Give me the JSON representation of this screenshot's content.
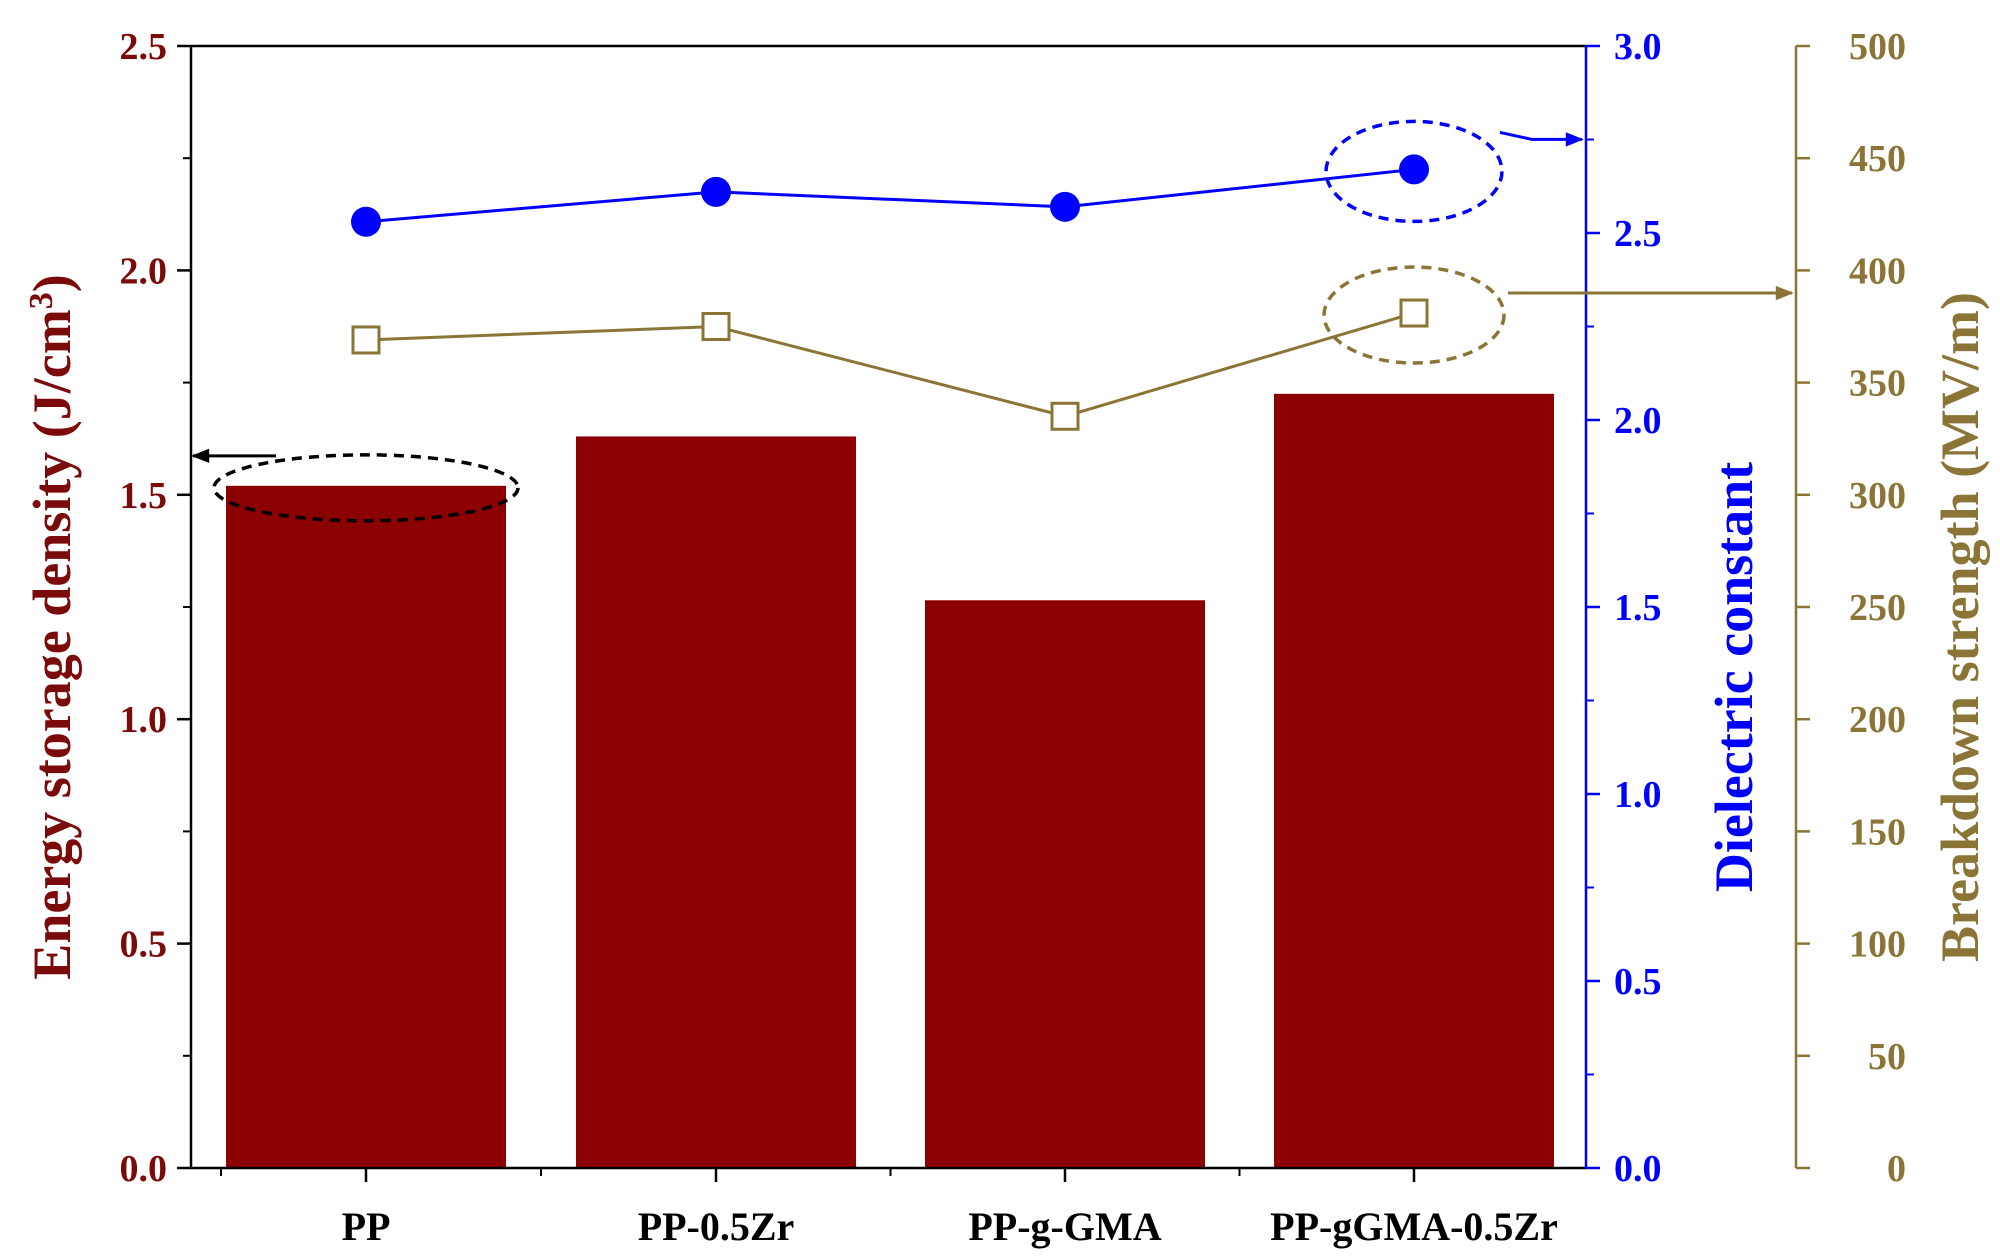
{
  "chart_data": {
    "type": "bar",
    "categories": [
      "PP",
      "PP-0.5Zr",
      "PP-g-GMA",
      "PP-gGMA-0.5Zr"
    ],
    "series": [
      {
        "kind": "bar",
        "axis": "left",
        "values": [
          1.52,
          1.63,
          1.265,
          1.725
        ],
        "color": "#8b0000"
      },
      {
        "kind": "line",
        "axis": "right1",
        "marker": "filled-circle",
        "values": [
          2.53,
          2.61,
          2.57,
          2.67
        ],
        "color": "#0000ff"
      },
      {
        "kind": "line",
        "axis": "right2",
        "marker": "open-square",
        "values": [
          369,
          375,
          335,
          381
        ],
        "color": "#8b7536"
      }
    ],
    "axes": {
      "left": {
        "label": "Energy storage density (J/cm",
        "label_sup": "3",
        "label_close": ")",
        "ylim": [
          0,
          2.5
        ],
        "ticks": [
          "0.0",
          "0.5",
          "1.0",
          "1.5",
          "2.0",
          "2.5"
        ],
        "color": "#7b0a0a"
      },
      "right1": {
        "label": "Dielectric constant",
        "ylim": [
          0,
          3.0
        ],
        "ticks": [
          "0.0",
          "0.5",
          "1.0",
          "1.5",
          "2.0",
          "2.5",
          "3.0"
        ],
        "color": "#0000ff"
      },
      "right2": {
        "label": "Breakdown strength (MV/m)",
        "ylim": [
          0,
          500
        ],
        "ticks": [
          "0",
          "50",
          "100",
          "150",
          "200",
          "250",
          "300",
          "350",
          "400",
          "450",
          "500"
        ],
        "color": "#8b7536"
      }
    },
    "annotations": [
      {
        "type": "dashed-ellipse-arrow",
        "target_series": 0,
        "category_index": 0,
        "points_to": "left",
        "color": "#000000"
      },
      {
        "type": "dashed-ellipse-arrow",
        "target_series": 1,
        "category_index": 3,
        "points_to": "right1",
        "color": "#0000ff"
      },
      {
        "type": "dashed-ellipse-arrow",
        "target_series": 2,
        "category_index": 3,
        "points_to": "right2",
        "color": "#8b7536"
      }
    ],
    "grid": false,
    "legend": "none"
  }
}
